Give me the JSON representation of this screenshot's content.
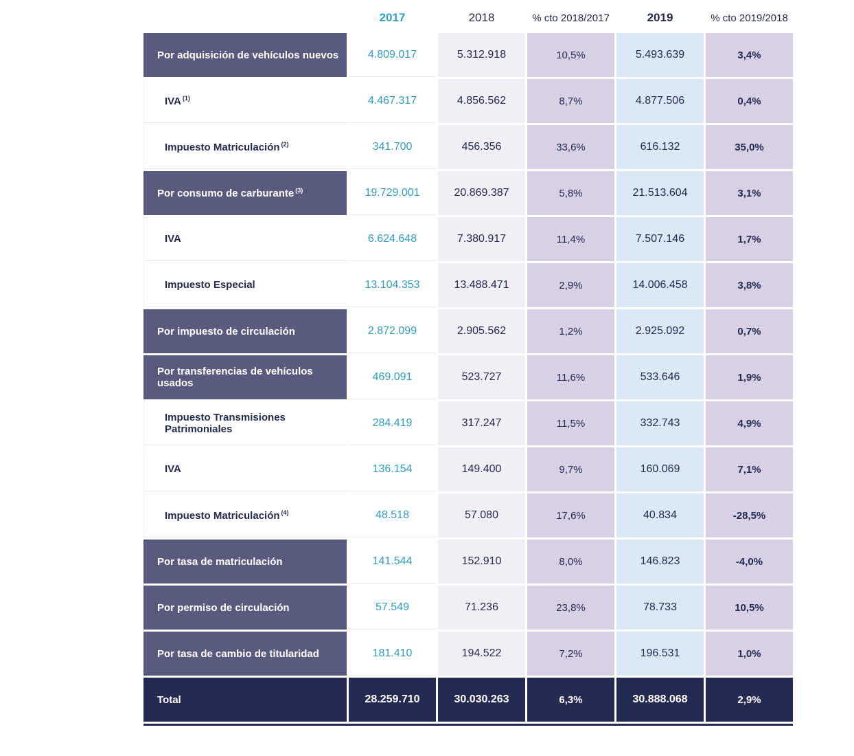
{
  "chart_data": {
    "type": "table",
    "columns": [
      "2017",
      "2018",
      "% cto 2018/2017",
      "2019",
      "% cto 2019/2018"
    ],
    "rows": [
      {
        "label": "Por adquisición de vehículos nuevos",
        "sup": "",
        "type": "category",
        "values": [
          "4.809.017",
          "5.312.918",
          "10,5%",
          "5.493.639",
          "3,4%"
        ]
      },
      {
        "label": "IVA",
        "sup": "(1)",
        "type": "sub",
        "values": [
          "4.467.317",
          "4.856.562",
          "8,7%",
          "4.877.506",
          "0,4%"
        ]
      },
      {
        "label": "Impuesto Matriculación",
        "sup": "(2)",
        "type": "sub",
        "values": [
          "341.700",
          "456.356",
          "33,6%",
          "616.132",
          "35,0%"
        ]
      },
      {
        "label": "Por consumo de carburante",
        "sup": "(3)",
        "type": "category",
        "values": [
          "19.729.001",
          "20.869.387",
          "5,8%",
          "21.513.604",
          "3,1%"
        ]
      },
      {
        "label": "IVA",
        "sup": "",
        "type": "sub",
        "values": [
          "6.624.648",
          "7.380.917",
          "11,4%",
          "7.507.146",
          "1,7%"
        ]
      },
      {
        "label": "Impuesto Especial",
        "sup": "",
        "type": "sub",
        "values": [
          "13.104.353",
          "13.488.471",
          "2,9%",
          "14.006.458",
          "3,8%"
        ]
      },
      {
        "label": "Por impuesto de circulación",
        "sup": "",
        "type": "category",
        "values": [
          "2.872.099",
          "2.905.562",
          "1,2%",
          "2.925.092",
          "0,7%"
        ]
      },
      {
        "label": "Por transferencias de vehículos usados",
        "sup": "",
        "type": "category",
        "values": [
          "469.091",
          "523.727",
          "11,6%",
          "533.646",
          "1,9%"
        ]
      },
      {
        "label": "Impuesto Transmisiones Patrimoniales",
        "sup": "",
        "type": "sub",
        "values": [
          "284.419",
          "317.247",
          "11,5%",
          "332.743",
          "4,9%"
        ]
      },
      {
        "label": "IVA",
        "sup": "",
        "type": "sub",
        "values": [
          "136.154",
          "149.400",
          "9,7%",
          "160.069",
          "7,1%"
        ]
      },
      {
        "label": "Impuesto Matriculación",
        "sup": "(4)",
        "type": "sub",
        "values": [
          "48.518",
          "57.080",
          "17,6%",
          "40.834",
          "-28,5%"
        ]
      },
      {
        "label": "Por tasa de matriculación",
        "sup": "",
        "type": "category",
        "values": [
          "141.544",
          "152.910",
          "8,0%",
          "146.823",
          "-4,0%"
        ]
      },
      {
        "label": "Por permiso de circulación",
        "sup": "",
        "type": "category",
        "values": [
          "57.549",
          "71.236",
          "23,8%",
          "78.733",
          "10,5%"
        ]
      },
      {
        "label": "Por tasa de cambio de titularidad",
        "sup": "",
        "type": "category",
        "values": [
          "181.410",
          "194.522",
          "7,2%",
          "196.531",
          "1,0%"
        ]
      },
      {
        "label": "Total",
        "sup": "",
        "type": "total",
        "values": [
          "28.259.710",
          "30.030.263",
          "6,3%",
          "30.888.068",
          "2,9%"
        ]
      }
    ]
  },
  "colors": {
    "category_row_bg": "#585b7d",
    "total_row_bg": "#242a52",
    "navy_text": "#222a52",
    "accent_2017": "#2e9ec9",
    "col_2018_bg": "#f1eff6",
    "col_pct_bg": "#d8d1e6",
    "col_2019_bg": "#dbe8f6"
  }
}
